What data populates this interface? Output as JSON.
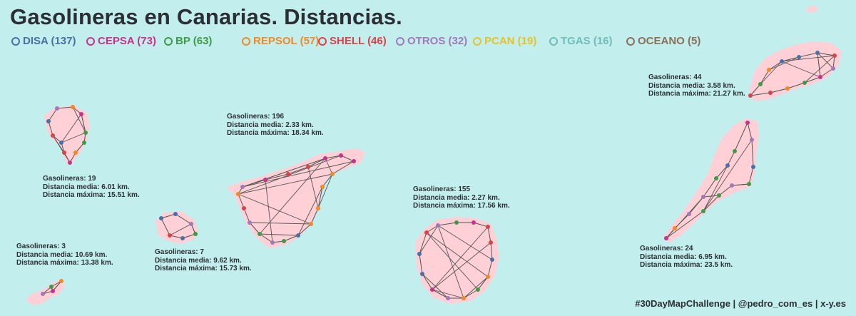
{
  "title": "Gasolineras en Canarias. Distancias.",
  "legend": [
    {
      "label": "DISA (137)",
      "color": "#4a6fa5"
    },
    {
      "label": "CEPSA (73)",
      "color": "#c8338a"
    },
    {
      "label": "BP (63)",
      "color": "#3f9a48"
    },
    {
      "label": "REPSOL (57)",
      "color": "#f08a24"
    },
    {
      "label": "SHELL (46)",
      "color": "#d8434a"
    },
    {
      "label": "OTROS (32)",
      "color": "#a07ab8"
    },
    {
      "label": "PCAN (19)",
      "color": "#e6c229"
    },
    {
      "label": "TGAS (16)",
      "color": "#6fbdb7"
    },
    {
      "label": "OCEANO (5)",
      "color": "#8b7058"
    }
  ],
  "islands": [
    {
      "name": "la-palma",
      "gasolineras": "Gasolineras: 19",
      "media": "Distancia media: 6.01 km.",
      "maxima": "Distancia máxima: 15.51 km."
    },
    {
      "name": "el-hierro",
      "gasolineras": "Gasolineras: 3",
      "media": "Distancia media: 10.69 km.",
      "maxima": "Distancia máxima: 13.38 km."
    },
    {
      "name": "la-gomera",
      "gasolineras": "Gasolineras: 7",
      "media": "Distancia media: 9.62 km.",
      "maxima": "Distancia máxima: 15.73 km."
    },
    {
      "name": "tenerife",
      "gasolineras": "Gasolineras: 196",
      "media": "Distancia media: 2.33 km.",
      "maxima": "Distancia máxima: 18.34 km."
    },
    {
      "name": "gran-canaria",
      "gasolineras": "Gasolineras: 155",
      "media": "Distancia media: 2.27 km.",
      "maxima": "Distancia máxima: 17.56 km."
    },
    {
      "name": "fuerteventura",
      "gasolineras": "Gasolineras: 24",
      "media": "Distancia media: 6.95 km.",
      "maxima": "Distancia máxima: 23.5 km."
    },
    {
      "name": "lanzarote",
      "gasolineras": "Gasolineras: 44",
      "media": "Distancia media: 3.58 km.",
      "maxima": "Distancia máxima: 21.27 km."
    }
  ],
  "footer": "#30DayMapChallenge | @pedro_com_es | x-y.es",
  "colors": {
    "background": "#c3eeee",
    "land": "#ffd0d6",
    "edge": "#555555"
  }
}
